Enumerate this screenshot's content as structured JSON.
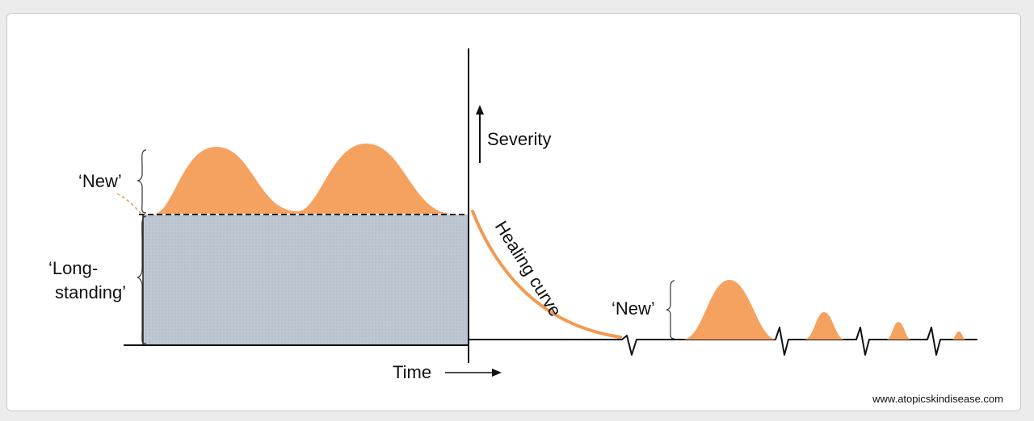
{
  "labels": {
    "new_left": "‘New’",
    "long_line1": "‘Long-",
    "long_line2": "standing’",
    "severity": "Severity",
    "healing": "Healing curve",
    "new_right": "‘New’",
    "time": "Time"
  },
  "source": "www.atopicskindisease.com",
  "colors": {
    "flare": "#f5a261",
    "longstanding": "#bcc4d0",
    "axis": "#111111",
    "healing": "#f29a52"
  }
}
